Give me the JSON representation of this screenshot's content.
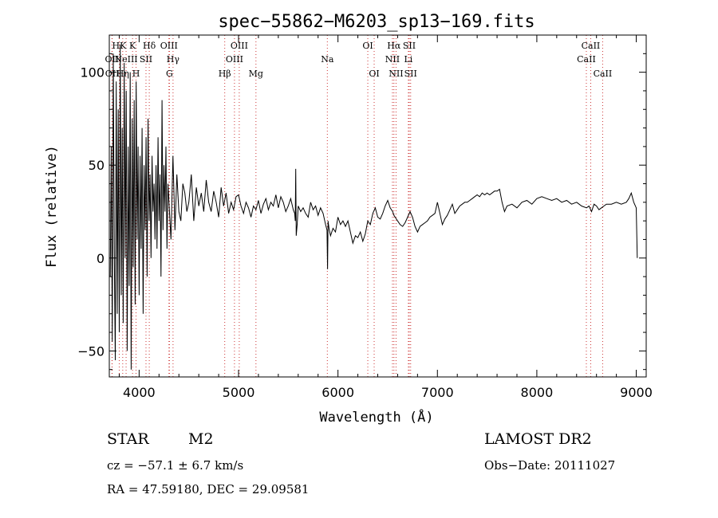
{
  "chart_data": {
    "type": "line",
    "title": "spec−55862−M6203_sp13−169.fits",
    "xlabel": "Wavelength (Å)",
    "ylabel": "Flux (relative)",
    "xlim": [
      3700,
      9100
    ],
    "ylim": [
      -64,
      120
    ],
    "x_ticks": [
      4000,
      5000,
      6000,
      7000,
      8000,
      9000
    ],
    "x_tick_labels": [
      "4000",
      "5000",
      "6000",
      "7000",
      "8000",
      "9000"
    ],
    "y_ticks": [
      -50,
      0,
      50,
      100
    ],
    "y_tick_labels": [
      "−50",
      "0",
      "50",
      "100"
    ],
    "grid": false,
    "line_color": "#000000",
    "marker_color": "#cc3333",
    "spectrum": {
      "x": [
        3710,
        3720,
        3730,
        3740,
        3750,
        3760,
        3770,
        3780,
        3790,
        3800,
        3810,
        3820,
        3830,
        3840,
        3850,
        3860,
        3870,
        3880,
        3890,
        3900,
        3910,
        3920,
        3930,
        3940,
        3950,
        3960,
        3970,
        3980,
        3990,
        4000,
        4010,
        4020,
        4030,
        4040,
        4050,
        4060,
        4070,
        4080,
        4090,
        4100,
        4110,
        4120,
        4130,
        4140,
        4150,
        4160,
        4170,
        4180,
        4190,
        4200,
        4210,
        4220,
        4230,
        4240,
        4250,
        4260,
        4270,
        4280,
        4290,
        4300,
        4320,
        4340,
        4360,
        4380,
        4400,
        4420,
        4440,
        4460,
        4480,
        4500,
        4525,
        4550,
        4575,
        4600,
        4625,
        4650,
        4675,
        4700,
        4725,
        4750,
        4775,
        4800,
        4825,
        4850,
        4875,
        4900,
        4925,
        4950,
        4975,
        5000,
        5025,
        5050,
        5075,
        5100,
        5125,
        5150,
        5175,
        5200,
        5225,
        5250,
        5275,
        5300,
        5325,
        5350,
        5375,
        5400,
        5425,
        5450,
        5475,
        5500,
        5525,
        5550,
        5565,
        5570,
        5575,
        5580,
        5590,
        5600,
        5625,
        5650,
        5675,
        5700,
        5725,
        5750,
        5775,
        5800,
        5825,
        5850,
        5875,
        5890,
        5895,
        5900,
        5910,
        5925,
        5950,
        5975,
        6000,
        6025,
        6050,
        6075,
        6100,
        6125,
        6150,
        6175,
        6200,
        6225,
        6250,
        6275,
        6300,
        6325,
        6350,
        6375,
        6400,
        6425,
        6450,
        6475,
        6500,
        6525,
        6550,
        6563,
        6575,
        6600,
        6625,
        6650,
        6675,
        6700,
        6725,
        6750,
        6775,
        6800,
        6825,
        6850,
        6875,
        6900,
        6925,
        6950,
        6975,
        7000,
        7025,
        7050,
        7075,
        7100,
        7125,
        7150,
        7175,
        7200,
        7225,
        7250,
        7275,
        7300,
        7325,
        7350,
        7375,
        7400,
        7425,
        7450,
        7475,
        7500,
        7525,
        7550,
        7575,
        7600,
        7625,
        7650,
        7675,
        7700,
        7750,
        7800,
        7850,
        7900,
        7950,
        8000,
        8050,
        8100,
        8150,
        8200,
        8250,
        8300,
        8350,
        8400,
        8450,
        8500,
        8525,
        8550,
        8575,
        8600,
        8625,
        8650,
        8675,
        8700,
        8750,
        8800,
        8850,
        8900,
        8925,
        8950,
        8975,
        9000,
        9010
      ],
      "y": [
        -10,
        60,
        -45,
        110,
        5,
        -55,
        95,
        -30,
        80,
        -40,
        115,
        -20,
        70,
        -35,
        105,
        0,
        90,
        -50,
        60,
        -15,
        100,
        -60,
        75,
        -5,
        85,
        -25,
        95,
        10,
        60,
        -20,
        55,
        5,
        70,
        -30,
        50,
        15,
        65,
        -10,
        75,
        20,
        45,
        0,
        55,
        25,
        40,
        10,
        50,
        5,
        65,
        20,
        45,
        -10,
        85,
        15,
        50,
        25,
        60,
        5,
        40,
        30,
        10,
        55,
        15,
        45,
        25,
        20,
        40,
        35,
        25,
        30,
        45,
        20,
        38,
        28,
        35,
        25,
        42,
        30,
        25,
        36,
        30,
        22,
        38,
        28,
        35,
        24,
        30,
        26,
        33,
        34,
        28,
        24,
        30,
        27,
        22,
        28,
        26,
        31,
        24,
        29,
        32,
        26,
        30,
        28,
        34,
        27,
        33,
        30,
        25,
        28,
        32,
        26,
        24,
        20,
        48,
        12,
        18,
        28,
        25,
        27,
        24,
        22,
        30,
        26,
        28,
        23,
        27,
        24,
        18,
        15,
        -6,
        20,
        16,
        12,
        16,
        14,
        22,
        18,
        20,
        17,
        20,
        14,
        8,
        12,
        11,
        14,
        9,
        13,
        20,
        18,
        24,
        27,
        22,
        21,
        24,
        28,
        31,
        27,
        25,
        23,
        22,
        20,
        18,
        17,
        19,
        22,
        25,
        22,
        17,
        14,
        17,
        18,
        19,
        20,
        22,
        23,
        24,
        30,
        24,
        18,
        21,
        23,
        26,
        29,
        24,
        26,
        28,
        29,
        30,
        30,
        31,
        32,
        33,
        34,
        33,
        35,
        34,
        35,
        34,
        35,
        36,
        36,
        37,
        30,
        25,
        28,
        29,
        27,
        30,
        31,
        29,
        32,
        33,
        32,
        31,
        32,
        30,
        31,
        29,
        30,
        28,
        27,
        28,
        25,
        29,
        28,
        26,
        27,
        28,
        29,
        29,
        30,
        29,
        30,
        32,
        35,
        30,
        27,
        0
      ]
    },
    "line_markers": [
      {
        "label": "HK",
        "x": 3800,
        "row": 0
      },
      {
        "label": "OII",
        "x": 3727,
        "row": 1
      },
      {
        "label": "OII",
        "x": 3729,
        "row": 2
      },
      {
        "label": "Hη",
        "x": 3835,
        "row": 2
      },
      {
        "label": "NeIII",
        "x": 3869,
        "row": 1
      },
      {
        "label": "K",
        "x": 3934,
        "row": 0
      },
      {
        "label": "H",
        "x": 3969,
        "row": 2
      },
      {
        "label": "SII",
        "x": 4069,
        "row": 1
      },
      {
        "label": "Hδ",
        "x": 4102,
        "row": 0
      },
      {
        "label": "OIII",
        "x": 4300,
        "row": 0
      },
      {
        "label": "Hγ",
        "x": 4341,
        "row": 1
      },
      {
        "label": "G",
        "x": 4305,
        "row": 2
      },
      {
        "label": "Hβ",
        "x": 4861,
        "row": 2
      },
      {
        "label": "OIII",
        "x": 4959,
        "row": 1
      },
      {
        "label": "OIII",
        "x": 5007,
        "row": 0
      },
      {
        "label": "Mg",
        "x": 5175,
        "row": 2
      },
      {
        "label": "Na",
        "x": 5893,
        "row": 1
      },
      {
        "label": "OI",
        "x": 6300,
        "row": 0
      },
      {
        "label": "OI",
        "x": 6364,
        "row": 2
      },
      {
        "label": "Hα",
        "x": 6563,
        "row": 0
      },
      {
        "label": "NII",
        "x": 6548,
        "row": 1
      },
      {
        "label": "NII",
        "x": 6584,
        "row": 2
      },
      {
        "label": "SII",
        "x": 6717,
        "row": 0
      },
      {
        "label": "Li",
        "x": 6708,
        "row": 1
      },
      {
        "label": "SII",
        "x": 6731,
        "row": 2
      },
      {
        "label": "CaII",
        "x": 8542,
        "row": 0
      },
      {
        "label": "CaII",
        "x": 8498,
        "row": 1
      },
      {
        "label": "CaII",
        "x": 8662,
        "row": 2
      }
    ]
  },
  "info": {
    "object_type": "STAR",
    "subclass": "M2",
    "survey": "LAMOST DR2",
    "cz": "cz = −57.1 ± 6.7 km/s",
    "obs_date": "Obs−Date: 20111027",
    "coords": "RA =  47.59180, DEC =  29.09581"
  }
}
